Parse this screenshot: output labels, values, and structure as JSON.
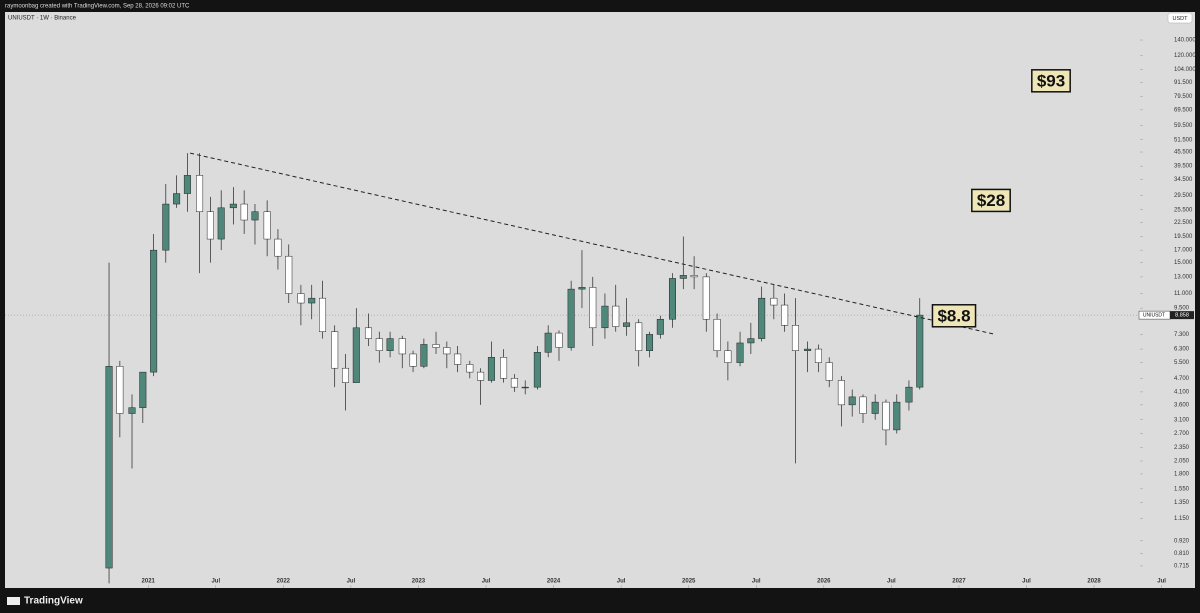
{
  "header": {
    "credit": "raymoonbag created with TradingView.com, Sep 28, 2026 09:02 UTC",
    "logo": "TradingView"
  },
  "chart_data": {
    "type": "candlestick",
    "title": "UNIUSDT · 1W · Binance",
    "currency": "USDT",
    "symbol": "UNIUSDT",
    "log_scale": true,
    "up_color": "#4f877a",
    "down_color": "#ffffff",
    "x": [
      2020.71,
      2020.79,
      2020.88,
      2020.96,
      2021.04,
      2021.13,
      2021.21,
      2021.29,
      2021.38,
      2021.46,
      2021.54,
      2021.63,
      2021.71,
      2021.79,
      2021.88,
      2021.96,
      2022.04,
      2022.13,
      2022.21,
      2022.29,
      2022.38,
      2022.46,
      2022.54,
      2022.63,
      2022.71,
      2022.79,
      2022.88,
      2022.96,
      2023.04,
      2023.13,
      2023.21,
      2023.29,
      2023.38,
      2023.46,
      2023.54,
      2023.63,
      2023.71,
      2023.79,
      2023.88,
      2023.96,
      2024.04,
      2024.13,
      2024.21,
      2024.29,
      2024.38,
      2024.46,
      2024.54,
      2024.63,
      2024.71,
      2024.79,
      2024.88,
      2024.96,
      2025.04,
      2025.13,
      2025.21,
      2025.29,
      2025.38,
      2025.46,
      2025.54,
      2025.63,
      2025.71,
      2025.79,
      2025.88,
      2025.96,
      2026.04,
      2026.13,
      2026.21,
      2026.29,
      2026.38,
      2026.46,
      2026.54,
      2026.63,
      2026.71
    ],
    "open": [
      0.7,
      5.3,
      3.3,
      3.5,
      5,
      17,
      27,
      30,
      36,
      25,
      19,
      26,
      27,
      23,
      25,
      19,
      16,
      11,
      10,
      10.5,
      7.5,
      5.2,
      4.5,
      7.8,
      7,
      6.2,
      7,
      6,
      5.3,
      6.6,
      6.4,
      6,
      5.4,
      5,
      4.6,
      5.8,
      4.7,
      4.3,
      4.3,
      6.1,
      7.4,
      6.4,
      11.5,
      11.7,
      7.8,
      9.7,
      7.9,
      8.2,
      6.2,
      7.3,
      8.5,
      12.8,
      13.2,
      13,
      8.5,
      6.2,
      5.5,
      6.7,
      7,
      10.5,
      9.8,
      8,
      6.2,
      6.3,
      5.5,
      4.6,
      3.6,
      3.9,
      3.3,
      3.7,
      2.8,
      3.7,
      4.3
    ],
    "high": [
      15,
      5.6,
      4,
      5,
      20,
      33,
      36,
      45,
      45,
      29,
      31,
      32,
      31,
      27,
      28,
      21,
      18,
      12,
      12,
      12.5,
      8,
      6,
      9.5,
      9,
      7.5,
      7.5,
      7.2,
      6.2,
      7,
      7.5,
      6.8,
      6.5,
      5.6,
      5.2,
      6.8,
      6.3,
      4.9,
      4.6,
      6.5,
      8,
      7.6,
      12.5,
      17,
      13,
      11,
      12,
      10.5,
      8.5,
      7.5,
      8.8,
      13.5,
      19.5,
      16,
      13.5,
      9,
      6.8,
      7.5,
      8.2,
      11.8,
      12,
      11,
      10.5,
      6.8,
      6.6,
      5.8,
      4.8,
      4.2,
      4,
      4,
      3.8,
      4,
      4.6,
      10.5
    ],
    "low": [
      0.6,
      2.6,
      1.9,
      3,
      4.8,
      15,
      26,
      25,
      13.5,
      15,
      17,
      22,
      20,
      18,
      16,
      14,
      10,
      8,
      8.5,
      7,
      4.3,
      3.4,
      4.5,
      6.5,
      5.5,
      5.8,
      5.2,
      5,
      5.2,
      6,
      5.2,
      5,
      4.7,
      3.6,
      4.5,
      4.5,
      4.1,
      4,
      4.2,
      5.8,
      5.6,
      6.2,
      9.5,
      6.5,
      7,
      7.5,
      7.2,
      5.3,
      5.8,
      7,
      7.8,
      11.5,
      11.5,
      7.5,
      5.8,
      4.6,
      5.3,
      6,
      6.8,
      8.5,
      7.5,
      2,
      5,
      5,
      4.3,
      2.9,
      3.2,
      3,
      3.1,
      2.4,
      2.7,
      3.4,
      4.2
    ],
    "close": [
      5.3,
      3.3,
      3.5,
      5,
      17,
      27,
      30,
      36,
      25,
      19,
      26,
      27,
      23,
      25,
      19,
      16,
      11,
      10,
      10.5,
      7.5,
      5.2,
      4.5,
      7.8,
      7,
      6.2,
      7,
      6,
      5.3,
      6.6,
      6.4,
      6,
      5.4,
      5,
      4.6,
      5.8,
      4.7,
      4.3,
      4.3,
      6.1,
      7.4,
      6.4,
      11.5,
      11.7,
      7.8,
      9.7,
      7.9,
      8.2,
      6.2,
      7.3,
      8.5,
      12.8,
      13.2,
      13,
      8.5,
      6.2,
      5.5,
      6.7,
      7,
      10.5,
      9.8,
      8,
      6.2,
      6.3,
      5.5,
      4.6,
      3.6,
      3.9,
      3.3,
      3.7,
      2.8,
      3.7,
      4.3,
      8.858
    ],
    "last_price": 8.858,
    "trendline": {
      "x": [
        2021.31,
        2027.27
      ],
      "y": [
        45,
        7.3
      ]
    },
    "annotations": [
      {
        "text": "$93",
        "value": 93
      },
      {
        "text": "$28",
        "value": 28
      },
      {
        "text": "$8.8",
        "value": 8.8
      }
    ],
    "xlim": [
      2019.94,
      2028.34
    ],
    "xticks": [
      2021,
      {
        "value": 2021.5,
        "label": "Jul"
      },
      2022,
      {
        "value": 2022.5,
        "label": "Jul"
      },
      2023,
      {
        "value": 2023.5,
        "label": "Jul"
      },
      2024,
      {
        "value": 2024.5,
        "label": "Jul"
      },
      2025,
      {
        "value": 2025.5,
        "label": "Jul"
      },
      2026,
      {
        "value": 2026.5,
        "label": "Jul"
      },
      2027,
      {
        "value": 2027.5,
        "label": "Jul"
      },
      2028,
      {
        "value": 2028.5,
        "label": "Jul"
      }
    ],
    "ylim": [
      0.573,
      185.5
    ],
    "yticks": [
      {
        "value": 140,
        "label": "140.000"
      },
      {
        "value": 120,
        "label": "120.000"
      },
      {
        "value": 104,
        "label": "104.000"
      },
      {
        "value": 91.5,
        "label": "91.500"
      },
      {
        "value": 79.5,
        "label": "79.500"
      },
      {
        "value": 69.5,
        "label": "69.500"
      },
      {
        "value": 59.5,
        "label": "59.500"
      },
      {
        "value": 51.5,
        "label": "51.500"
      },
      {
        "value": 45.5,
        "label": "45.500"
      },
      {
        "value": 39.5,
        "label": "39.500"
      },
      {
        "value": 34.5,
        "label": "34.500"
      },
      {
        "value": 29.5,
        "label": "29.500"
      },
      {
        "value": 25.5,
        "label": "25.500"
      },
      {
        "value": 22.5,
        "label": "22.500"
      },
      {
        "value": 19.5,
        "label": "19.500"
      },
      {
        "value": 17,
        "label": "17.000"
      },
      {
        "value": 15,
        "label": "15.000"
      },
      {
        "value": 13,
        "label": "13.000"
      },
      {
        "value": 11,
        "label": "11.000"
      },
      {
        "value": 9.5,
        "label": "9.500"
      },
      {
        "value": 7.3,
        "label": "7.300"
      },
      {
        "value": 6.3,
        "label": "6.300"
      },
      {
        "value": 5.5,
        "label": "5.500"
      },
      {
        "value": 4.7,
        "label": "4.700"
      },
      {
        "value": 4.1,
        "label": "4.100"
      },
      {
        "value": 3.6,
        "label": "3.600"
      },
      {
        "value": 3.1,
        "label": "3.100"
      },
      {
        "value": 2.7,
        "label": "2.700"
      },
      {
        "value": 2.35,
        "label": "2.350"
      },
      {
        "value": 2.05,
        "label": "2.050"
      },
      {
        "value": 1.8,
        "label": "1.800"
      },
      {
        "value": 1.55,
        "label": "1.550"
      },
      {
        "value": 1.35,
        "label": "1.350"
      },
      {
        "value": 1.15,
        "label": "1.150"
      },
      {
        "value": 0.92,
        "label": "0.920"
      },
      {
        "value": 0.81,
        "label": "0.810"
      },
      {
        "value": 0.715,
        "label": "0.715"
      }
    ]
  }
}
